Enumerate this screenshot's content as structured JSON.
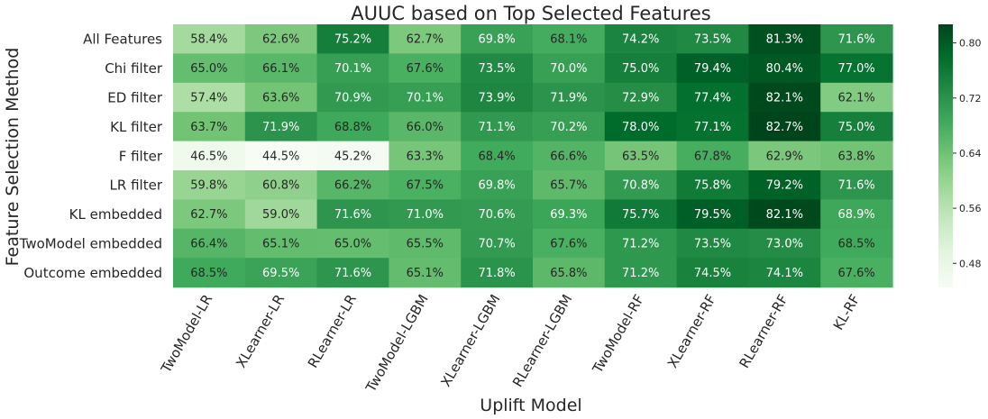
{
  "chart_data": {
    "type": "heatmap",
    "title": "AUUC based on Top Selected Features",
    "xlabel": "Uplift Model",
    "ylabel": "Feature Selection Method",
    "columns": [
      "TwoModel-LR",
      "XLearner-LR",
      "RLearner-LR",
      "TwoModel-LGBM",
      "XLearner-LGBM",
      "RLearner-LGBM",
      "TwoModel-RF",
      "XLearner-RF",
      "RLearner-RF",
      "KL-RF"
    ],
    "rows": [
      "All Features",
      "Chi filter",
      "ED filter",
      "KL filter",
      "F filter",
      "LR filter",
      "KL embedded",
      "TwoModel embedded",
      "Outcome embedded"
    ],
    "values": [
      [
        0.584,
        0.626,
        0.752,
        0.627,
        0.698,
        0.681,
        0.742,
        0.735,
        0.813,
        0.716
      ],
      [
        0.65,
        0.661,
        0.701,
        0.676,
        0.735,
        0.7,
        0.75,
        0.794,
        0.804,
        0.77
      ],
      [
        0.574,
        0.636,
        0.709,
        0.701,
        0.739,
        0.719,
        0.729,
        0.774,
        0.821,
        0.621
      ],
      [
        0.637,
        0.719,
        0.688,
        0.66,
        0.711,
        0.702,
        0.78,
        0.771,
        0.827,
        0.75
      ],
      [
        0.465,
        0.445,
        0.452,
        0.633,
        0.684,
        0.666,
        0.635,
        0.678,
        0.629,
        0.638
      ],
      [
        0.598,
        0.608,
        0.662,
        0.675,
        0.698,
        0.657,
        0.708,
        0.758,
        0.792,
        0.716
      ],
      [
        0.627,
        0.59,
        0.716,
        0.71,
        0.706,
        0.693,
        0.757,
        0.795,
        0.821,
        0.689
      ],
      [
        0.664,
        0.651,
        0.65,
        0.655,
        0.707,
        0.676,
        0.712,
        0.735,
        0.73,
        0.685
      ],
      [
        0.685,
        0.695,
        0.716,
        0.651,
        0.718,
        0.658,
        0.712,
        0.745,
        0.741,
        0.676
      ]
    ],
    "labels": [
      [
        "58.4%",
        "62.6%",
        "75.2%",
        "62.7%",
        "69.8%",
        "68.1%",
        "74.2%",
        "73.5%",
        "81.3%",
        "71.6%"
      ],
      [
        "65.0%",
        "66.1%",
        "70.1%",
        "67.6%",
        "73.5%",
        "70.0%",
        "75.0%",
        "79.4%",
        "80.4%",
        "77.0%"
      ],
      [
        "57.4%",
        "63.6%",
        "70.9%",
        "70.1%",
        "73.9%",
        "71.9%",
        "72.9%",
        "77.4%",
        "82.1%",
        "62.1%"
      ],
      [
        "63.7%",
        "71.9%",
        "68.8%",
        "66.0%",
        "71.1%",
        "70.2%",
        "78.0%",
        "77.1%",
        "82.7%",
        "75.0%"
      ],
      [
        "46.5%",
        "44.5%",
        "45.2%",
        "63.3%",
        "68.4%",
        "66.6%",
        "63.5%",
        "67.8%",
        "62.9%",
        "63.8%"
      ],
      [
        "59.8%",
        "60.8%",
        "66.2%",
        "67.5%",
        "69.8%",
        "65.7%",
        "70.8%",
        "75.8%",
        "79.2%",
        "71.6%"
      ],
      [
        "62.7%",
        "59.0%",
        "71.6%",
        "71.0%",
        "70.6%",
        "69.3%",
        "75.7%",
        "79.5%",
        "82.1%",
        "68.9%"
      ],
      [
        "66.4%",
        "65.1%",
        "65.0%",
        "65.5%",
        "70.7%",
        "67.6%",
        "71.2%",
        "73.5%",
        "73.0%",
        "68.5%"
      ],
      [
        "68.5%",
        "69.5%",
        "71.6%",
        "65.1%",
        "71.8%",
        "65.8%",
        "71.2%",
        "74.5%",
        "74.1%",
        "67.6%"
      ]
    ],
    "colormap": "Greens",
    "vmin": 0.445,
    "vmax": 0.827,
    "colorbar_ticks": [
      "0.48",
      "0.56",
      "0.64",
      "0.72",
      "0.80"
    ],
    "colorbar_tick_values": [
      0.48,
      0.56,
      0.64,
      0.72,
      0.8
    ]
  }
}
